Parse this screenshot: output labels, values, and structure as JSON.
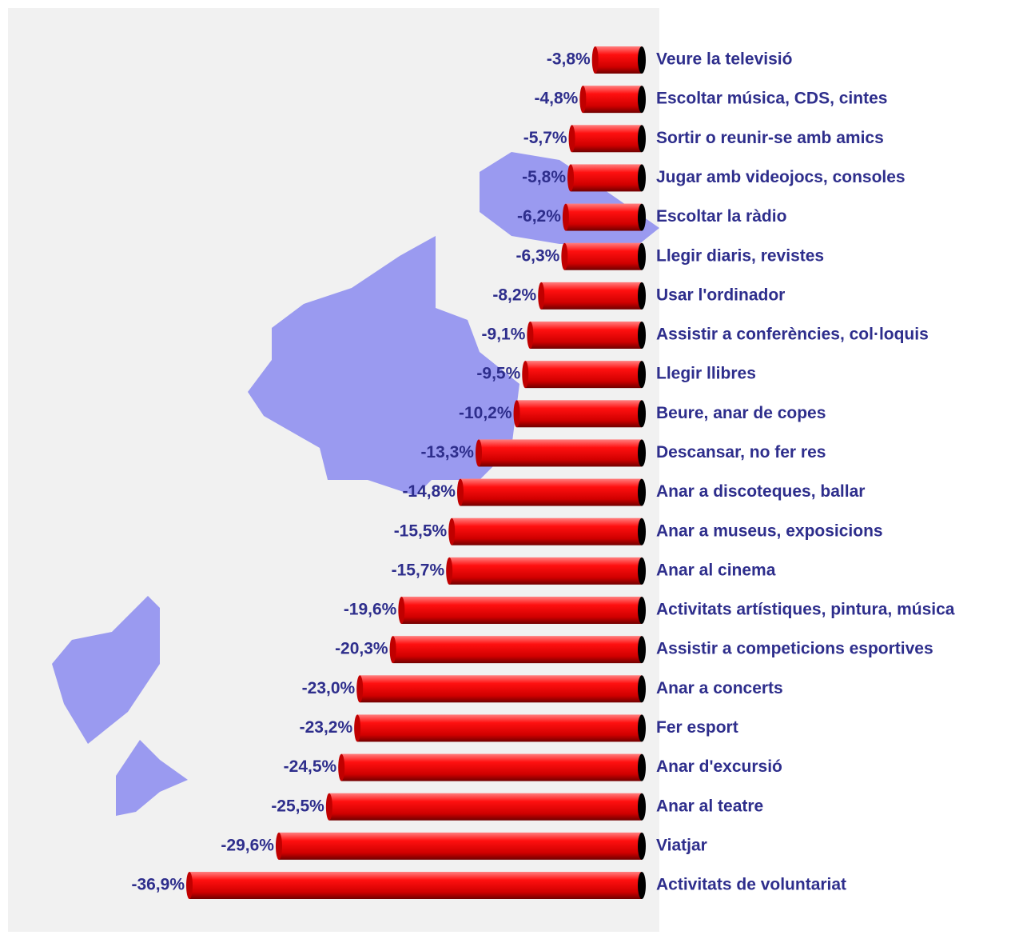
{
  "chart_data": {
    "type": "bar",
    "orientation": "horizontal",
    "color": "#ee0000",
    "categories": [
      "Veure la televisió",
      "Escoltar música, CDS, cintes",
      "Sortir o reunir-se amb amics",
      "Jugar amb videojocs, consoles",
      "Escoltar la ràdio",
      "Llegir diaris, revistes",
      "Usar l'ordinador",
      "Assistir a conferències, col·loquis",
      "Llegir llibres",
      "Beure, anar de copes",
      "Descansar, no fer res",
      "Anar a discoteques, ballar",
      "Anar a museus, exposicions",
      "Anar al cinema",
      "Activitats artístiques, pintura, música",
      "Assistir a competicions esportives",
      "Anar a concerts",
      "Fer esport",
      "Anar d'excursió",
      "Anar al teatre",
      "Viatjar",
      "Activitats de voluntariat"
    ],
    "values": [
      -3.8,
      -4.8,
      -5.7,
      -5.8,
      -6.2,
      -6.3,
      -8.2,
      -9.1,
      -9.5,
      -10.2,
      -13.3,
      -14.8,
      -15.5,
      -15.7,
      -19.6,
      -20.3,
      -23.0,
      -23.2,
      -24.5,
      -25.5,
      -29.6,
      -36.9
    ],
    "value_labels": [
      "-3,8%",
      "-4,8%",
      "-5,7%",
      "-5,8%",
      "-6,2%",
      "-6,3%",
      "-8,2%",
      "-9,1%",
      "-9,5%",
      "-10,2%",
      "-13,3%",
      "-14,8%",
      "-15,5%",
      "-15,7%",
      "-19,6%",
      "-20,3%",
      "-23,0%",
      "-23,2%",
      "-24,5%",
      "-25,5%",
      "-29,6%",
      "-36,9%"
    ]
  }
}
